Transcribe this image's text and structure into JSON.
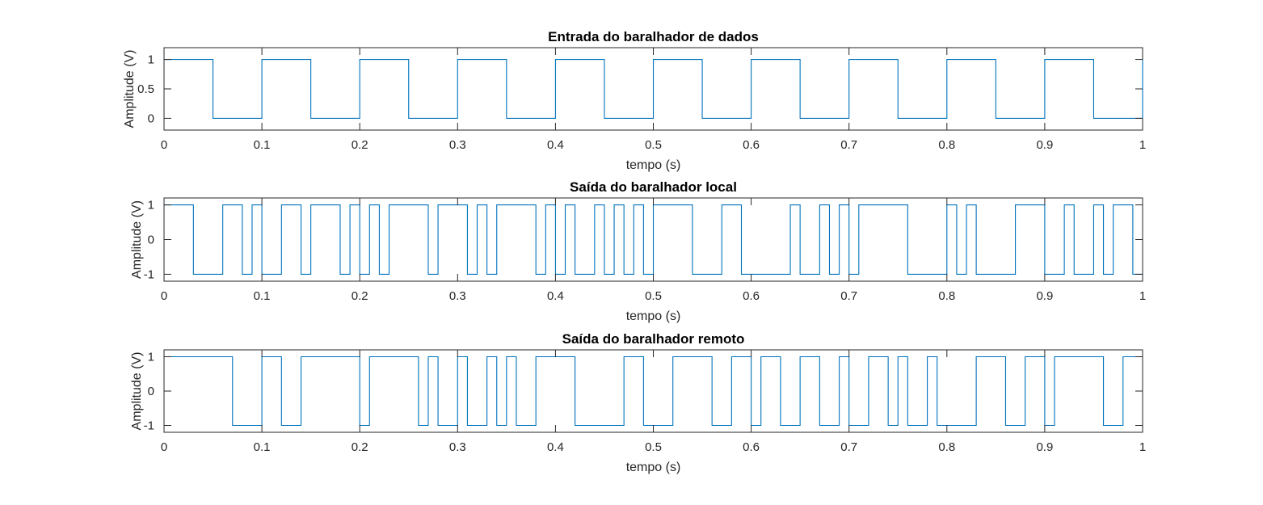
{
  "colors": {
    "signal": "#0072BD",
    "axis": "#262626",
    "background": "#ffffff"
  },
  "chart_data": [
    {
      "type": "line",
      "title": "Entrada do baralhador de dados",
      "xlabel": "tempo (s)",
      "ylabel": "Amplitude (V)",
      "xlim": [
        0,
        1
      ],
      "ylim": [
        -0.2,
        1.2
      ],
      "xticks": [
        0,
        0.1,
        0.2,
        0.3,
        0.4,
        0.5,
        0.6,
        0.7,
        0.8,
        0.9,
        1
      ],
      "xtick_labels": [
        "0",
        "0.1",
        "0.2",
        "0.3",
        "0.4",
        "0.5",
        "0.6",
        "0.7",
        "0.8",
        "0.9",
        "1"
      ],
      "yticks": [
        0,
        0.5,
        1
      ],
      "ytick_labels": [
        "0",
        "0.5",
        "1"
      ],
      "grid": false,
      "series": [
        {
          "x": [
            0,
            0.05,
            0.1,
            0.15,
            0.2,
            0.25,
            0.3,
            0.35,
            0.4,
            0.45,
            0.5,
            0.55,
            0.6,
            0.65,
            0.7,
            0.75,
            0.8,
            0.85,
            0.9,
            0.95,
            1
          ],
          "values": [
            1,
            0,
            1,
            0,
            1,
            0,
            1,
            0,
            1,
            0,
            1,
            0,
            1,
            0,
            1,
            0,
            1,
            0,
            1,
            0,
            1
          ]
        }
      ]
    },
    {
      "type": "line",
      "title": "Saída do baralhador local",
      "xlabel": "tempo (s)",
      "ylabel": "Amplitude (V)",
      "xlim": [
        0,
        1
      ],
      "ylim": [
        -1.2,
        1.2
      ],
      "xticks": [
        0,
        0.1,
        0.2,
        0.3,
        0.4,
        0.5,
        0.6,
        0.7,
        0.8,
        0.9,
        1
      ],
      "xtick_labels": [
        "0",
        "0.1",
        "0.2",
        "0.3",
        "0.4",
        "0.5",
        "0.6",
        "0.7",
        "0.8",
        "0.9",
        "1"
      ],
      "yticks": [
        -1,
        0,
        1
      ],
      "ytick_labels": [
        "-1",
        "0",
        "1"
      ],
      "grid": false,
      "series": [
        {
          "x": [
            0,
            0.03,
            0.06,
            0.08,
            0.09,
            0.1,
            0.12,
            0.14,
            0.15,
            0.18,
            0.19,
            0.2,
            0.21,
            0.22,
            0.23,
            0.27,
            0.28,
            0.31,
            0.32,
            0.33,
            0.34,
            0.38,
            0.39,
            0.4,
            0.41,
            0.42,
            0.44,
            0.45,
            0.46,
            0.47,
            0.48,
            0.49,
            0.5,
            0.54,
            0.57,
            0.59,
            0.64,
            0.65,
            0.67,
            0.68,
            0.69,
            0.7,
            0.71,
            0.76,
            0.8,
            0.81,
            0.82,
            0.83,
            0.87,
            0.9,
            0.92,
            0.93,
            0.95,
            0.96,
            0.97,
            0.99
          ],
          "values": [
            1,
            -1,
            1,
            -1,
            1,
            -1,
            1,
            -1,
            1,
            -1,
            1,
            -1,
            1,
            -1,
            1,
            -1,
            1,
            -1,
            1,
            -1,
            1,
            -1,
            1,
            -1,
            1,
            -1,
            1,
            -1,
            1,
            -1,
            1,
            -1,
            1,
            -1,
            1,
            -1,
            1,
            -1,
            1,
            -1,
            1,
            -1,
            1,
            -1,
            1,
            -1,
            1,
            -1,
            1,
            -1,
            1,
            -1,
            1,
            -1,
            1,
            -1
          ]
        }
      ]
    },
    {
      "type": "line",
      "title": "Saída do baralhador remoto",
      "xlabel": "tempo (s)",
      "ylabel": "Amplitude (V)",
      "xlim": [
        0,
        1
      ],
      "ylim": [
        -1.2,
        1.2
      ],
      "xticks": [
        0,
        0.1,
        0.2,
        0.3,
        0.4,
        0.5,
        0.6,
        0.7,
        0.8,
        0.9,
        1
      ],
      "xtick_labels": [
        "0",
        "0.1",
        "0.2",
        "0.3",
        "0.4",
        "0.5",
        "0.6",
        "0.7",
        "0.8",
        "0.9",
        "1"
      ],
      "yticks": [
        -1,
        0,
        1
      ],
      "ytick_labels": [
        "-1",
        "0",
        "1"
      ],
      "grid": false,
      "series": [
        {
          "x": [
            0,
            0.07,
            0.1,
            0.12,
            0.14,
            0.2,
            0.21,
            0.26,
            0.27,
            0.28,
            0.3,
            0.31,
            0.33,
            0.34,
            0.35,
            0.36,
            0.38,
            0.42,
            0.47,
            0.49,
            0.52,
            0.56,
            0.58,
            0.6,
            0.61,
            0.63,
            0.65,
            0.67,
            0.69,
            0.7,
            0.72,
            0.74,
            0.75,
            0.76,
            0.78,
            0.79,
            0.83,
            0.86,
            0.88,
            0.9,
            0.91,
            0.96,
            0.98
          ],
          "values": [
            1,
            -1,
            1,
            -1,
            1,
            -1,
            1,
            -1,
            1,
            -1,
            1,
            -1,
            1,
            -1,
            1,
            -1,
            1,
            -1,
            1,
            -1,
            1,
            -1,
            1,
            -1,
            1,
            -1,
            1,
            -1,
            1,
            -1,
            1,
            -1,
            1,
            -1,
            1,
            -1,
            1,
            -1,
            1,
            -1,
            1,
            -1,
            1
          ]
        }
      ]
    }
  ]
}
